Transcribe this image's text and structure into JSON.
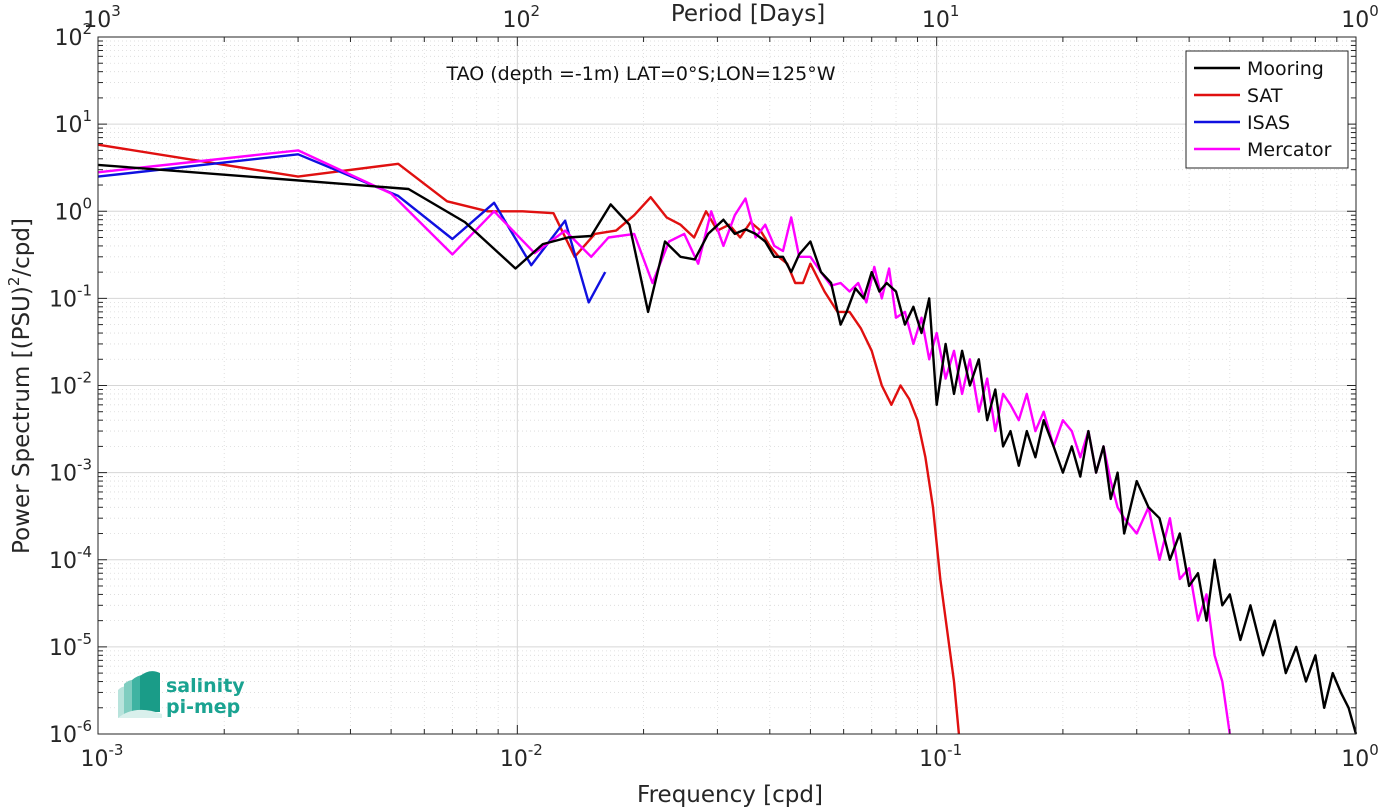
{
  "chart_data": {
    "type": "line",
    "title": "TAO (depth =-1m) LAT=0°S;LON=125°W",
    "xlabel": "Frequency [cpd]",
    "xlabel_top": "Period [Days]",
    "ylabel": "Power Spectrum [(PSU)²/cpd]",
    "ylabel_parts": {
      "pre": "Power Spectrum [(PSU)",
      "sup": "2",
      "post": "/cpd]"
    },
    "xscale": "log",
    "yscale": "log",
    "xlim": [
      0.001,
      1
    ],
    "ylim": [
      1e-06,
      100
    ],
    "grid": true,
    "legend_position": "top-right",
    "x_ticks": [
      {
        "v": 0.001,
        "base": "10",
        "exp": "-3"
      },
      {
        "v": 0.01,
        "base": "10",
        "exp": "-2"
      },
      {
        "v": 0.1,
        "base": "10",
        "exp": "-1"
      },
      {
        "v": 1,
        "base": "10",
        "exp": "0"
      }
    ],
    "top_ticks": [
      {
        "v": 0.001,
        "base": "10",
        "exp": "3"
      },
      {
        "v": 0.01,
        "base": "10",
        "exp": "2"
      },
      {
        "v": 0.1,
        "base": "10",
        "exp": "1"
      },
      {
        "v": 1,
        "base": "10",
        "exp": "0"
      }
    ],
    "y_ticks": [
      {
        "v": 1e-06,
        "base": "10",
        "exp": "-6"
      },
      {
        "v": 1e-05,
        "base": "10",
        "exp": "-5"
      },
      {
        "v": 0.0001,
        "base": "10",
        "exp": "-4"
      },
      {
        "v": 0.001,
        "base": "10",
        "exp": "-3"
      },
      {
        "v": 0.01,
        "base": "10",
        "exp": "-2"
      },
      {
        "v": 0.1,
        "base": "10",
        "exp": "-1"
      },
      {
        "v": 1,
        "base": "10",
        "exp": "0"
      },
      {
        "v": 10,
        "base": "10",
        "exp": "1"
      },
      {
        "v": 100,
        "base": "10",
        "exp": "2"
      }
    ],
    "series": [
      {
        "name": "Mooring",
        "color": "#000000",
        "x": [
          0.001,
          0.0055,
          0.0075,
          0.0099,
          0.0115,
          0.0132,
          0.015,
          0.0167,
          0.0185,
          0.0205,
          0.0225,
          0.0245,
          0.0265,
          0.0285,
          0.031,
          0.033,
          0.035,
          0.037,
          0.039,
          0.041,
          0.043,
          0.045,
          0.047,
          0.05,
          0.053,
          0.056,
          0.059,
          0.061,
          0.064,
          0.067,
          0.07,
          0.073,
          0.076,
          0.08,
          0.084,
          0.088,
          0.092,
          0.096,
          0.1,
          0.105,
          0.11,
          0.115,
          0.12,
          0.126,
          0.132,
          0.138,
          0.144,
          0.15,
          0.157,
          0.164,
          0.172,
          0.18,
          0.19,
          0.2,
          0.21,
          0.22,
          0.23,
          0.24,
          0.25,
          0.26,
          0.27,
          0.28,
          0.3,
          0.32,
          0.34,
          0.36,
          0.38,
          0.4,
          0.42,
          0.44,
          0.46,
          0.48,
          0.5,
          0.53,
          0.56,
          0.6,
          0.64,
          0.68,
          0.72,
          0.76,
          0.8,
          0.84,
          0.88,
          0.92,
          0.96,
          1.0
        ],
        "y": [
          3.4,
          1.8,
          0.75,
          0.22,
          0.42,
          0.5,
          0.52,
          1.2,
          0.7,
          0.07,
          0.45,
          0.3,
          0.28,
          0.55,
          0.8,
          0.55,
          0.62,
          0.55,
          0.45,
          0.3,
          0.3,
          0.2,
          0.32,
          0.45,
          0.2,
          0.15,
          0.05,
          0.07,
          0.13,
          0.1,
          0.2,
          0.12,
          0.15,
          0.12,
          0.05,
          0.08,
          0.04,
          0.1,
          0.006,
          0.03,
          0.008,
          0.025,
          0.01,
          0.02,
          0.004,
          0.009,
          0.002,
          0.003,
          0.0012,
          0.003,
          0.0015,
          0.004,
          0.002,
          0.001,
          0.002,
          0.0009,
          0.003,
          0.001,
          0.002,
          0.0005,
          0.001,
          0.0002,
          0.0008,
          0.0004,
          0.0003,
          0.0001,
          0.0002,
          5e-05,
          7e-05,
          2e-05,
          0.0001,
          3e-05,
          4e-05,
          1.2e-05,
          3e-05,
          8e-06,
          2e-05,
          5e-06,
          1e-05,
          4e-06,
          8e-06,
          2e-06,
          5e-06,
          3e-06,
          2e-06,
          1e-06
        ]
      },
      {
        "name": "SAT",
        "color": "#e01010",
        "x": [
          0.001,
          0.003,
          0.0052,
          0.0068,
          0.0085,
          0.0103,
          0.0122,
          0.0137,
          0.0153,
          0.0172,
          0.019,
          0.0208,
          0.0227,
          0.0245,
          0.0264,
          0.0282,
          0.03,
          0.032,
          0.034,
          0.036,
          0.038,
          0.04,
          0.042,
          0.044,
          0.046,
          0.048,
          0.05,
          0.054,
          0.058,
          0.062,
          0.066,
          0.07,
          0.074,
          0.078,
          0.082,
          0.086,
          0.09,
          0.094,
          0.098,
          0.102,
          0.106,
          0.11,
          0.113
        ],
        "y": [
          5.8,
          2.5,
          3.5,
          1.3,
          1.0,
          1.0,
          0.95,
          0.3,
          0.55,
          0.6,
          0.9,
          1.45,
          0.85,
          0.7,
          0.5,
          1.0,
          0.6,
          0.7,
          0.5,
          0.75,
          0.6,
          0.4,
          0.3,
          0.25,
          0.15,
          0.15,
          0.25,
          0.12,
          0.07,
          0.07,
          0.045,
          0.025,
          0.01,
          0.006,
          0.01,
          0.007,
          0.004,
          0.0015,
          0.0004,
          6e-05,
          1.5e-05,
          4e-06,
          1e-06
        ]
      },
      {
        "name": "ISAS",
        "color": "#1010e0",
        "x": [
          0.001,
          0.003,
          0.0052,
          0.007,
          0.0088,
          0.0108,
          0.013,
          0.0148,
          0.0162
        ],
        "y": [
          2.5,
          4.5,
          1.5,
          0.48,
          1.25,
          0.24,
          0.78,
          0.09,
          0.2
        ]
      },
      {
        "name": "Mercator",
        "color": "#ff00ff",
        "x": [
          0.001,
          0.003,
          0.005,
          0.007,
          0.0088,
          0.011,
          0.013,
          0.015,
          0.0165,
          0.019,
          0.021,
          0.023,
          0.025,
          0.027,
          0.029,
          0.031,
          0.033,
          0.035,
          0.037,
          0.039,
          0.041,
          0.043,
          0.045,
          0.047,
          0.05,
          0.053,
          0.056,
          0.059,
          0.062,
          0.065,
          0.068,
          0.071,
          0.074,
          0.077,
          0.08,
          0.084,
          0.088,
          0.092,
          0.096,
          0.1,
          0.105,
          0.11,
          0.115,
          0.12,
          0.126,
          0.132,
          0.138,
          0.144,
          0.15,
          0.157,
          0.164,
          0.172,
          0.18,
          0.19,
          0.2,
          0.21,
          0.22,
          0.23,
          0.24,
          0.25,
          0.26,
          0.27,
          0.28,
          0.3,
          0.32,
          0.34,
          0.36,
          0.38,
          0.4,
          0.42,
          0.44,
          0.46,
          0.48,
          0.5
        ],
        "y": [
          2.8,
          5.0,
          1.6,
          0.32,
          1.0,
          0.33,
          0.6,
          0.3,
          0.5,
          0.55,
          0.15,
          0.45,
          0.55,
          0.25,
          1.0,
          0.4,
          0.9,
          1.4,
          0.5,
          0.7,
          0.4,
          0.35,
          0.85,
          0.3,
          0.3,
          0.2,
          0.14,
          0.15,
          0.12,
          0.15,
          0.09,
          0.23,
          0.1,
          0.22,
          0.06,
          0.07,
          0.03,
          0.06,
          0.02,
          0.04,
          0.012,
          0.025,
          0.008,
          0.02,
          0.005,
          0.012,
          0.003,
          0.008,
          0.006,
          0.004,
          0.008,
          0.003,
          0.005,
          0.002,
          0.004,
          0.003,
          0.0015,
          0.003,
          0.001,
          0.002,
          0.0008,
          0.0004,
          0.0003,
          0.0002,
          0.0004,
          0.0001,
          0.0003,
          6e-05,
          8e-05,
          2e-05,
          4e-05,
          8e-06,
          4e-06,
          1e-06
        ]
      }
    ]
  },
  "logo": {
    "line1": "salinity",
    "line2": "pi-mep",
    "color": "#1aa391"
  }
}
